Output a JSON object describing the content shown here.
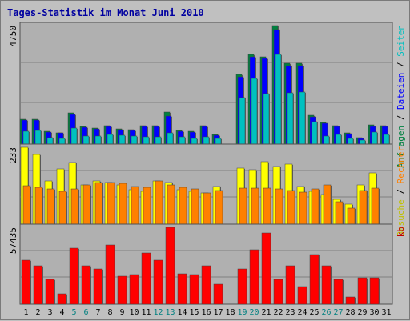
{
  "chart_data": {
    "type": "bar",
    "title": "Tages-Statistik im Monat Juni 2010",
    "categories": [
      "1",
      "2",
      "3",
      "4",
      "5",
      "6",
      "7",
      "8",
      "9",
      "10",
      "11",
      "12",
      "13",
      "14",
      "15",
      "16",
      "17",
      "18",
      "19",
      "20",
      "21",
      "22",
      "23",
      "24",
      "25",
      "26",
      "27",
      "28",
      "29",
      "30",
      "31"
    ],
    "weekend_days": [
      5,
      6,
      12,
      13,
      19,
      20,
      26,
      27
    ],
    "panels": [
      {
        "id": "requests",
        "ymax_label": "4750",
        "ymax": 4750,
        "right_labels": [
          {
            "text": "Anfragen",
            "color": "#008040"
          },
          {
            "text": " / ",
            "color": "#000000"
          },
          {
            "text": "Dateien",
            "color": "#0000ff"
          },
          {
            "text": " / ",
            "color": "#000000"
          },
          {
            "text": "Seiten",
            "color": "#00c0c0"
          }
        ],
        "series": [
          {
            "key": "anfragen",
            "color": "#008040",
            "values": [
              1000,
              990,
              520,
              460,
              1260,
              720,
              640,
              750,
              600,
              580,
              750,
              750,
              1280,
              540,
              500,
              730,
              380,
              0,
              2780,
              3580,
              3510,
              4750,
              3240,
              3240,
              1150,
              880,
              750,
              440,
              260,
              780,
              740
            ]
          },
          {
            "key": "dateien",
            "color": "#0000ff",
            "values": [
              960,
              950,
              490,
              440,
              1200,
              690,
              610,
              710,
              570,
              550,
              720,
              720,
              1120,
              510,
              480,
              700,
              340,
              0,
              2700,
              3500,
              3450,
              4600,
              3150,
              3160,
              1100,
              840,
              720,
              420,
              240,
              700,
              700
            ]
          },
          {
            "key": "seiten",
            "color": "#00c0c0",
            "values": [
              510,
              560,
              260,
              240,
              630,
              320,
              320,
              390,
              340,
              330,
              300,
              300,
              460,
              300,
              230,
              290,
              220,
              0,
              1850,
              2640,
              2030,
              3600,
              2050,
              2100,
              900,
              330,
              380,
              230,
              160,
              490,
              390
            ]
          }
        ]
      },
      {
        "id": "visits",
        "ymax_label": "233",
        "ymax": 233,
        "right_labels": [
          {
            "text": "Besuche",
            "color": "#c0c000"
          },
          {
            "text": " / ",
            "color": "#000000"
          },
          {
            "text": "Rechner",
            "color": "#ff8000"
          }
        ],
        "series": [
          {
            "key": "besuche",
            "color": "#ffff00",
            "values": [
              233,
              210,
              130,
              168,
              188,
              120,
              130,
              125,
              120,
              105,
              100,
              130,
              125,
              105,
              100,
              95,
              115,
              0,
              170,
              165,
              190,
              175,
              182,
              115,
              100,
              90,
              75,
              60,
              120,
              155,
              0
            ]
          },
          {
            "key": "rechner",
            "color": "#ff8000",
            "values": [
              116,
              112,
              108,
              100,
              108,
              120,
              125,
              125,
              123,
              113,
              112,
              130,
              118,
              112,
              107,
              95,
              103,
              0,
              110,
              110,
              110,
              106,
              103,
              98,
              108,
              118,
              68,
              48,
              103,
              110,
              0
            ]
          }
        ]
      },
      {
        "id": "traffic",
        "ymax_label": "57435",
        "ymax": 57435,
        "right_labels": [
          {
            "text": "kb",
            "color": "#c00000"
          }
        ],
        "series": [
          {
            "key": "kb",
            "color": "#ff0000",
            "values": [
              33000,
              28500,
              18500,
              7500,
              42000,
              29000,
              26500,
              44000,
              21000,
              22000,
              38000,
              33000,
              57435,
              23000,
              22000,
              28500,
              15000,
              0,
              26500,
              40500,
              53500,
              18500,
              28500,
              13000,
              37000,
              29000,
              18500,
              5500,
              19500,
              19500,
              0
            ]
          }
        ]
      }
    ]
  }
}
